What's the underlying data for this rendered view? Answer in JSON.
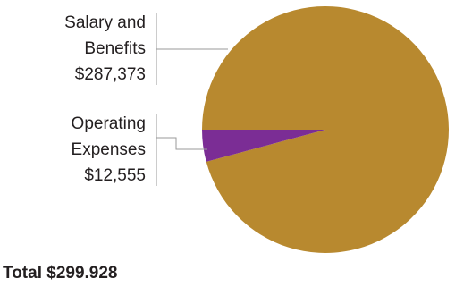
{
  "chart_data": {
    "type": "pie",
    "slices": [
      {
        "name_lines": [
          "Salary and",
          "Benefits"
        ],
        "value": 287373,
        "value_label": "$287,373",
        "color": "#b8892f"
      },
      {
        "name_lines": [
          "Operating",
          "Expenses"
        ],
        "value": 12555,
        "value_label": "$12,555",
        "color": "#7b2d95"
      }
    ],
    "total_label": "Total $299.928",
    "leader_color": "#9a9a9a"
  }
}
